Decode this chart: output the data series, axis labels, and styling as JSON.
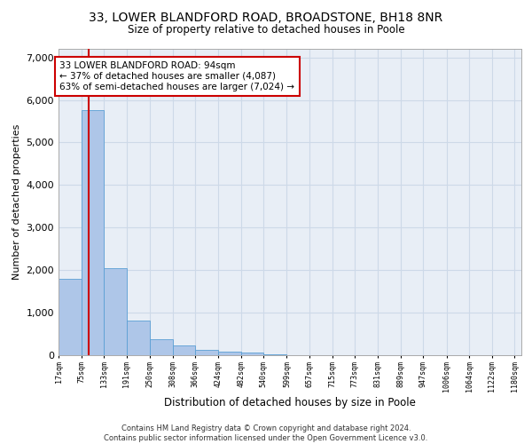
{
  "title_line1": "33, LOWER BLANDFORD ROAD, BROADSTONE, BH18 8NR",
  "title_line2": "Size of property relative to detached houses in Poole",
  "xlabel": "Distribution of detached houses by size in Poole",
  "ylabel": "Number of detached properties",
  "bin_labels": [
    "17sqm",
    "75sqm",
    "133sqm",
    "191sqm",
    "250sqm",
    "308sqm",
    "366sqm",
    "424sqm",
    "482sqm",
    "540sqm",
    "599sqm",
    "657sqm",
    "715sqm",
    "773sqm",
    "831sqm",
    "889sqm",
    "947sqm",
    "1006sqm",
    "1064sqm",
    "1122sqm",
    "1180sqm"
  ],
  "bar_heights": [
    1800,
    5750,
    2050,
    820,
    380,
    240,
    115,
    90,
    55,
    30,
    10,
    5,
    3,
    2,
    1,
    1,
    0,
    0,
    0,
    0
  ],
  "bar_color": "#aec6e8",
  "bar_edge_color": "#5a9fd4",
  "vline_x": 94,
  "vline_color": "#cc0000",
  "annotation_text": "33 LOWER BLANDFORD ROAD: 94sqm\n← 37% of detached houses are smaller (4,087)\n63% of semi-detached houses are larger (7,024) →",
  "annotation_box_color": "#cc0000",
  "xlim_left": 17,
  "xlim_right": 1197,
  "ylim": [
    0,
    7200
  ],
  "yticks": [
    0,
    1000,
    2000,
    3000,
    4000,
    5000,
    6000,
    7000
  ],
  "grid_color": "#cdd9e8",
  "background_color": "#e8eef6",
  "footer_line1": "Contains HM Land Registry data © Crown copyright and database right 2024.",
  "footer_line2": "Contains public sector information licensed under the Open Government Licence v3.0.",
  "bin_width": 58
}
